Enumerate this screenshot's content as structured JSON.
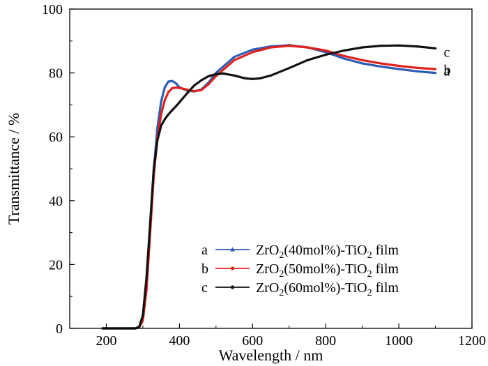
{
  "chart_data": {
    "type": "line",
    "xlabel": "Wavelength / nm",
    "ylabel": "Transmittance / %",
    "xlim": [
      100,
      1200
    ],
    "ylim": [
      0,
      100
    ],
    "xticks": [
      200,
      400,
      600,
      800,
      1000,
      1200
    ],
    "yticks": [
      0,
      20,
      40,
      60,
      80,
      100
    ],
    "series": [
      {
        "id": "a",
        "label": "a",
        "legend": {
          "prefix": "ZrO",
          "sub1": "2",
          "mid": "(40mol%)-TiO",
          "sub2": "2",
          "suffix": " film"
        },
        "color": "#2a5cb5",
        "marker": "triangle",
        "x": [
          190,
          280,
          290,
          300,
          310,
          320,
          330,
          340,
          350,
          360,
          370,
          380,
          390,
          400,
          420,
          440,
          460,
          480,
          500,
          550,
          600,
          650,
          700,
          750,
          800,
          850,
          900,
          950,
          1000,
          1050,
          1100
        ],
        "y": [
          0,
          0,
          0.5,
          4,
          15,
          32,
          50,
          63,
          71,
          75.5,
          77.3,
          77.5,
          76.8,
          75.5,
          74.5,
          74.2,
          74.8,
          77,
          80,
          85,
          87.3,
          88.3,
          88.7,
          88,
          86.5,
          84.5,
          83,
          82,
          81.2,
          80.5,
          80
        ]
      },
      {
        "id": "b",
        "label": "b",
        "legend": {
          "prefix": "ZrO",
          "sub1": "2",
          "mid": "(50mol%)-TiO",
          "sub2": "2",
          "suffix": " film"
        },
        "color": "#e0201c",
        "marker": "dot",
        "x": [
          190,
          280,
          290,
          300,
          310,
          320,
          330,
          340,
          350,
          360,
          370,
          380,
          390,
          400,
          420,
          440,
          460,
          480,
          500,
          550,
          600,
          650,
          700,
          750,
          800,
          850,
          900,
          950,
          1000,
          1050,
          1100
        ],
        "y": [
          0,
          0,
          0.3,
          2.5,
          12,
          30,
          48,
          60,
          67,
          71.5,
          74,
          75.2,
          75.4,
          75.3,
          74.8,
          74.3,
          74.6,
          76.5,
          79,
          84,
          86.5,
          88,
          88.5,
          88,
          87,
          85.3,
          84,
          83,
          82.2,
          81.6,
          81.2
        ]
      },
      {
        "id": "c",
        "label": "c",
        "legend": {
          "prefix": "ZrO",
          "sub1": "2",
          "mid": "(60mol%)-TiO",
          "sub2": "2",
          "suffix": " film"
        },
        "color": "#111111",
        "marker": "dot",
        "x": [
          190,
          280,
          290,
          300,
          310,
          320,
          330,
          340,
          350,
          360,
          370,
          380,
          390,
          400,
          420,
          440,
          460,
          480,
          500,
          520,
          550,
          580,
          600,
          620,
          650,
          700,
          750,
          800,
          850,
          900,
          950,
          1000,
          1050,
          1100
        ],
        "y": [
          0,
          0,
          0.5,
          4,
          16,
          33,
          50,
          59,
          63.5,
          65.5,
          67,
          68.3,
          69.5,
          70.8,
          73.5,
          76,
          77.7,
          79,
          79.6,
          79.8,
          79.2,
          78.3,
          78.1,
          78.3,
          79.2,
          81.5,
          84,
          85.7,
          87,
          88,
          88.5,
          88.6,
          88.3,
          87.7
        ]
      }
    ],
    "grid": false,
    "legend_position": "bottom-right"
  }
}
